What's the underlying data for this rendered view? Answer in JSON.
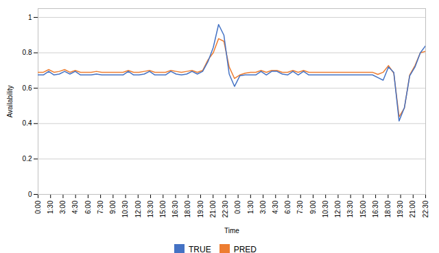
{
  "chart_data": {
    "type": "line",
    "title": "",
    "xlabel": "Time",
    "ylabel": "Availability",
    "x": [
      0,
      1,
      2,
      3,
      4,
      5,
      6,
      7,
      8,
      9,
      10,
      11,
      12,
      13,
      14,
      15,
      16,
      17,
      18,
      19,
      20,
      21,
      22,
      23,
      24,
      25,
      26,
      27,
      28,
      29,
      30,
      31,
      32,
      33,
      34,
      35,
      36,
      37,
      38,
      39,
      40,
      41,
      42,
      43,
      44,
      45,
      46,
      47,
      48,
      49,
      50,
      51,
      52,
      53,
      54,
      55,
      56,
      57,
      58,
      59,
      60,
      61,
      62,
      63,
      64,
      65,
      66,
      67,
      68,
      69,
      70,
      71,
      72,
      73
    ],
    "xlim": [
      0,
      73
    ],
    "xticks": [
      {
        "value": 0,
        "label": "0:00"
      },
      {
        "value": 2.354839,
        "label": "1:30"
      },
      {
        "value": 4.709677,
        "label": "3:00"
      },
      {
        "value": 7.064516,
        "label": "4:30"
      },
      {
        "value": 9.419355,
        "label": "6:00"
      },
      {
        "value": 11.774194,
        "label": "7:30"
      },
      {
        "value": 14.129032,
        "label": "9:00"
      },
      {
        "value": 16.483871,
        "label": "10:30"
      },
      {
        "value": 18.83871,
        "label": "12:00"
      },
      {
        "value": 21.193548,
        "label": "13:30"
      },
      {
        "value": 23.548387,
        "label": "15:00"
      },
      {
        "value": 25.903226,
        "label": "16:30"
      },
      {
        "value": 28.258065,
        "label": "18:00"
      },
      {
        "value": 30.612903,
        "label": "19:30"
      },
      {
        "value": 32.967742,
        "label": "21:00"
      },
      {
        "value": 35.322581,
        "label": "22:30"
      },
      {
        "value": 37.677419,
        "label": "0:00"
      },
      {
        "value": 40.032258,
        "label": "1:30"
      },
      {
        "value": 42.387097,
        "label": "3:00"
      },
      {
        "value": 44.741935,
        "label": "4:30"
      },
      {
        "value": 47.096774,
        "label": "6:00"
      },
      {
        "value": 49.451613,
        "label": "7:30"
      },
      {
        "value": 51.806452,
        "label": "9:00"
      },
      {
        "value": 54.16129,
        "label": "10:30"
      },
      {
        "value": 56.516129,
        "label": "12:00"
      },
      {
        "value": 58.870968,
        "label": "13:30"
      },
      {
        "value": 61.225806,
        "label": "15:00"
      },
      {
        "value": 63.580645,
        "label": "16:30"
      },
      {
        "value": 65.935484,
        "label": "18:00"
      },
      {
        "value": 68.290323,
        "label": "19:30"
      },
      {
        "value": 70.645161,
        "label": "21:00"
      },
      {
        "value": 73,
        "label": "22:30"
      }
    ],
    "ylim": [
      0,
      1.05
    ],
    "yticks": [
      0,
      0.2,
      0.4,
      0.6,
      0.8,
      1
    ],
    "grid": true,
    "legend": "bottom",
    "series": [
      {
        "name": "TRUE",
        "color": "#4472C4",
        "values": [
          0.675,
          0.675,
          0.695,
          0.675,
          0.68,
          0.695,
          0.68,
          0.695,
          0.675,
          0.675,
          0.675,
          0.68,
          0.675,
          0.675,
          0.675,
          0.675,
          0.675,
          0.695,
          0.675,
          0.675,
          0.68,
          0.695,
          0.675,
          0.675,
          0.675,
          0.695,
          0.68,
          0.675,
          0.68,
          0.695,
          0.68,
          0.695,
          0.75,
          0.83,
          0.96,
          0.9,
          0.68,
          0.61,
          0.67,
          0.675,
          0.675,
          0.675,
          0.695,
          0.675,
          0.695,
          0.695,
          0.68,
          0.675,
          0.695,
          0.675,
          0.695,
          0.675,
          0.675,
          0.675,
          0.675,
          0.675,
          0.675,
          0.675,
          0.675,
          0.675,
          0.675,
          0.675,
          0.675,
          0.675,
          0.66,
          0.645,
          0.72,
          0.69,
          0.415,
          0.49,
          0.67,
          0.72,
          0.8,
          0.84
        ]
      },
      {
        "name": "PRED",
        "color": "#ED7D31",
        "values": [
          0.69,
          0.69,
          0.705,
          0.69,
          0.695,
          0.705,
          0.69,
          0.7,
          0.69,
          0.69,
          0.69,
          0.695,
          0.69,
          0.69,
          0.69,
          0.69,
          0.69,
          0.7,
          0.69,
          0.69,
          0.695,
          0.7,
          0.69,
          0.69,
          0.69,
          0.7,
          0.695,
          0.69,
          0.695,
          0.7,
          0.69,
          0.7,
          0.76,
          0.8,
          0.88,
          0.865,
          0.72,
          0.655,
          0.675,
          0.685,
          0.69,
          0.69,
          0.7,
          0.69,
          0.7,
          0.7,
          0.69,
          0.69,
          0.7,
          0.69,
          0.7,
          0.69,
          0.69,
          0.69,
          0.69,
          0.69,
          0.69,
          0.69,
          0.69,
          0.69,
          0.69,
          0.69,
          0.69,
          0.69,
          0.678,
          0.69,
          0.728,
          0.685,
          0.438,
          0.488,
          0.675,
          0.728,
          0.8,
          0.808
        ]
      }
    ]
  }
}
